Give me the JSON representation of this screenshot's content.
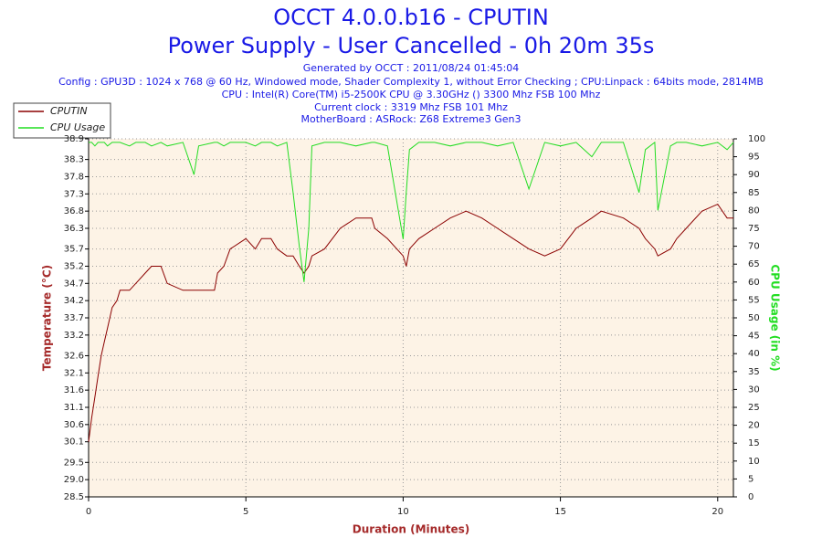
{
  "chart_data": {
    "type": "line",
    "title": "OCCT 4.0.0.b16 - CPUTIN",
    "subtitle": "Power Supply - User Cancelled - 0h 20m 35s",
    "annotations": [
      "Generated by OCCT : 2011/08/24 01:45:04",
      "Config : GPU3D : 1024 x 768 @ 60 Hz, Windowed mode, Shader Complexity 1, without Error Checking ; CPU:Linpack : 64bits mode, 2814MB",
      "CPU : Intel(R) Core(TM) i5-2500K CPU @ 3.30GHz () 3300 Mhz FSB 100 Mhz",
      "Current clock : 3319 Mhz FSB 101 Mhz",
      "MotherBoard : ASRock: Z68 Extreme3 Gen3"
    ],
    "x_label": "Duration (Minutes)",
    "y_label": "Temperature (°C)",
    "y2_label": "CPU Usage (in %)",
    "legend": "upper left",
    "grid": true,
    "x": [
      0,
      0.1,
      0.2,
      0.3,
      0.4,
      0.5,
      0.6,
      0.75,
      0.9,
      1.0,
      1.3,
      1.5,
      1.8,
      2.0,
      2.3,
      2.5,
      3.0,
      3.35,
      3.5,
      4.0,
      4.1,
      4.3,
      4.5,
      5.0,
      5.3,
      5.5,
      5.8,
      6.0,
      6.3,
      6.5,
      6.7,
      6.85,
      7.0,
      7.1,
      7.5,
      8.0,
      8.5,
      9.0,
      9.1,
      9.5,
      10.0,
      10.1,
      10.2,
      10.5,
      11.0,
      11.5,
      12.0,
      12.5,
      13.0,
      13.5,
      14.0,
      14.5,
      15.0,
      15.5,
      16.0,
      16.3,
      17.0,
      17.5,
      17.7,
      18.0,
      18.1,
      18.5,
      18.7,
      19.0,
      19.5,
      20.0,
      20.3,
      20.5
    ],
    "series": [
      {
        "name": "CPUTIN",
        "color": "#8b0000",
        "axis": "y",
        "values": [
          30.1,
          30.8,
          31.4,
          32.0,
          32.6,
          33.0,
          33.4,
          34.0,
          34.2,
          34.5,
          34.5,
          34.7,
          35.0,
          35.2,
          35.2,
          34.7,
          34.5,
          34.5,
          34.5,
          34.5,
          35.0,
          35.2,
          35.7,
          36.0,
          35.7,
          36.0,
          36.0,
          35.7,
          35.5,
          35.5,
          35.2,
          35.0,
          35.2,
          35.5,
          35.7,
          36.3,
          36.6,
          36.6,
          36.3,
          36.0,
          35.5,
          35.2,
          35.7,
          36.0,
          36.3,
          36.6,
          36.8,
          36.6,
          36.3,
          36.0,
          35.7,
          35.5,
          35.7,
          36.3,
          36.6,
          36.8,
          36.6,
          36.3,
          36.0,
          35.7,
          35.5,
          35.7,
          36.0,
          36.3,
          36.8,
          37.0,
          36.6,
          36.6
        ]
      },
      {
        "name": "CPU Usage",
        "color": "#22dd22",
        "axis": "y2",
        "values": [
          99,
          99,
          98,
          99,
          99,
          99,
          98,
          99,
          99,
          99,
          98,
          99,
          99,
          98,
          99,
          98,
          99,
          90,
          98,
          99,
          99,
          98,
          99,
          99,
          98,
          99,
          99,
          98,
          99,
          85,
          70,
          60,
          75,
          98,
          99,
          99,
          98,
          99,
          99,
          98,
          72,
          85,
          97,
          99,
          99,
          98,
          99,
          99,
          98,
          99,
          86,
          99,
          98,
          99,
          95,
          99,
          99,
          85,
          97,
          99,
          80,
          98,
          99,
          99,
          98,
          99,
          97,
          99
        ]
      }
    ],
    "xlim": [
      0,
      20.5
    ],
    "xticks": [
      0,
      5,
      10,
      15,
      20
    ],
    "ylim": [
      28.5,
      38.9
    ],
    "yticks": [
      28.5,
      {
        "value": 29,
        "label": "29.0"
      },
      29.5,
      30.1,
      30.6,
      31.1,
      31.6,
      32.1,
      32.6,
      33.2,
      33.7,
      34.2,
      34.7,
      35.2,
      35.7,
      36.3,
      36.8,
      37.3,
      37.8,
      38.3,
      38.9
    ],
    "y2lim": [
      0,
      100
    ],
    "y2ticks": [
      0,
      5,
      10,
      15,
      20,
      25,
      30,
      35,
      40,
      45,
      50,
      55,
      60,
      65,
      70,
      75,
      80,
      85,
      90,
      95,
      100
    ]
  }
}
